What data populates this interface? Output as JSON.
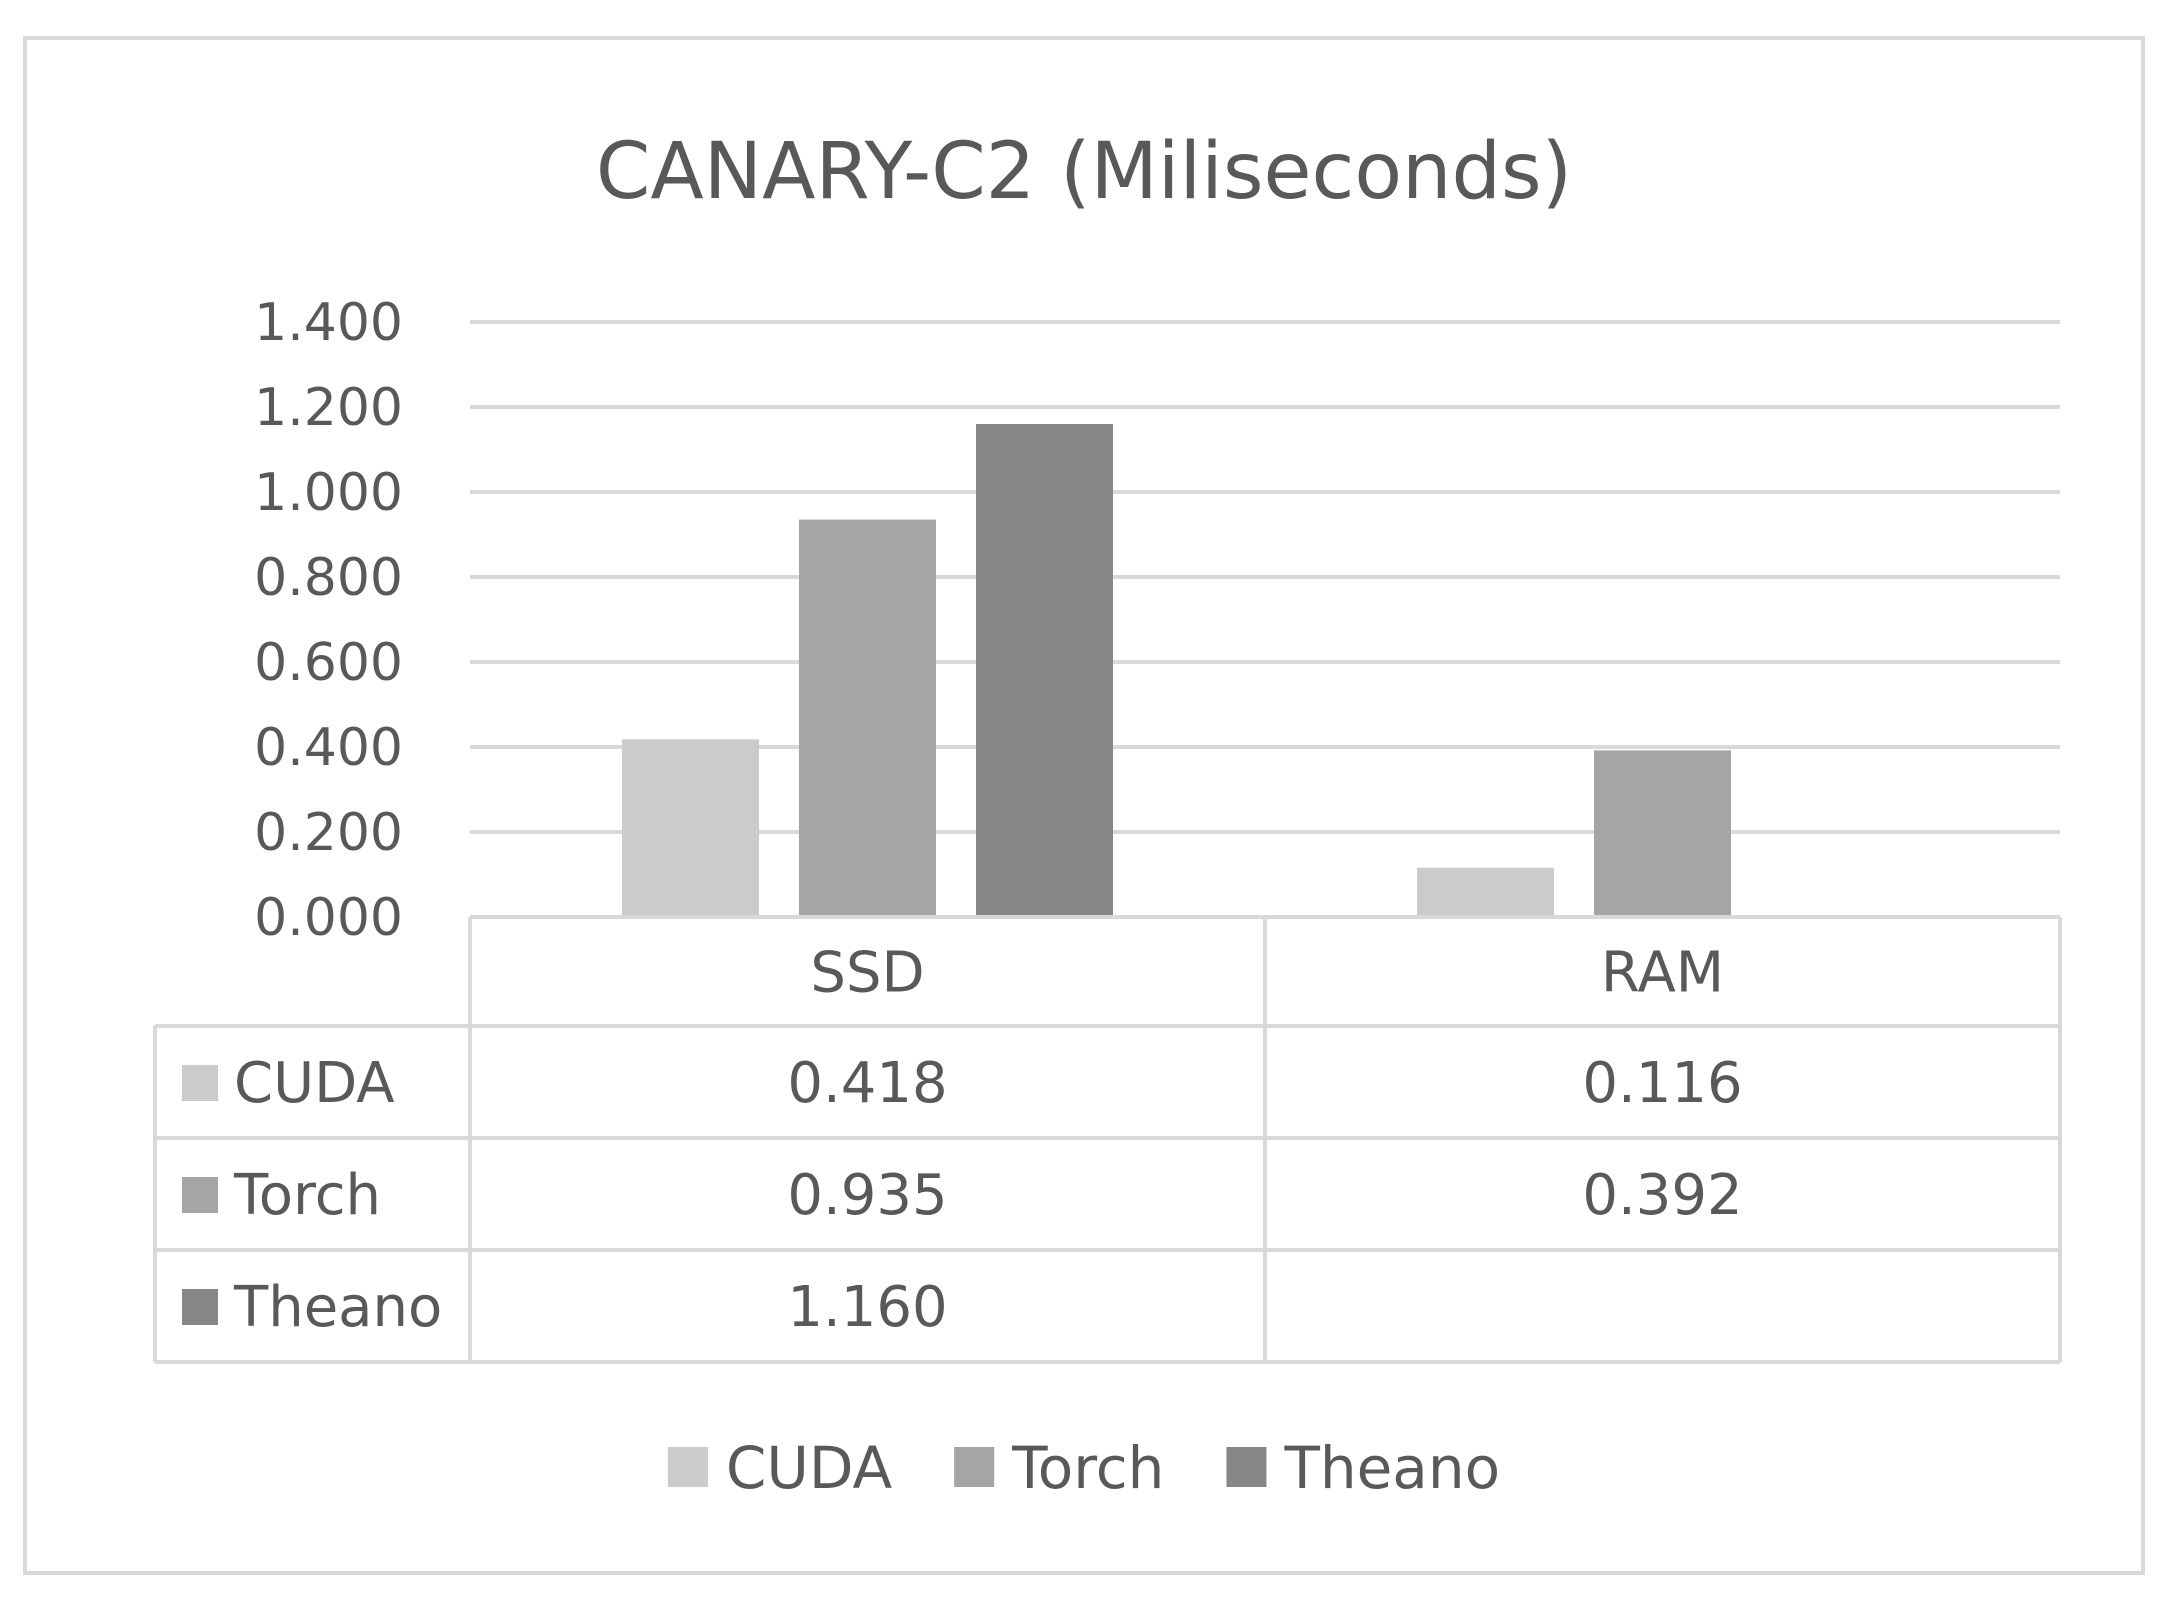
{
  "chart_data": {
    "type": "bar",
    "title": "CANARY-C2 (Miliseconds)",
    "xlabel": "",
    "ylabel": "",
    "categories": [
      "SSD",
      "RAM"
    ],
    "series": [
      {
        "name": "CUDA",
        "values": [
          0.418,
          0.116
        ],
        "labels": [
          "0.418",
          "0.116"
        ],
        "color": "#cbcbcb"
      },
      {
        "name": "Torch",
        "values": [
          0.935,
          0.392
        ],
        "labels": [
          "0.935",
          "0.392"
        ],
        "color": "#a5a5a5"
      },
      {
        "name": "Theano",
        "values": [
          1.16,
          null
        ],
        "labels": [
          "1.160",
          ""
        ],
        "color": "#878787"
      }
    ],
    "ylim": [
      0,
      1.4
    ],
    "yticks": [
      "0.000",
      "0.200",
      "0.400",
      "0.600",
      "0.800",
      "1.000",
      "1.200",
      "1.400"
    ],
    "grid": true,
    "legend": "bottom",
    "data_table": true
  }
}
